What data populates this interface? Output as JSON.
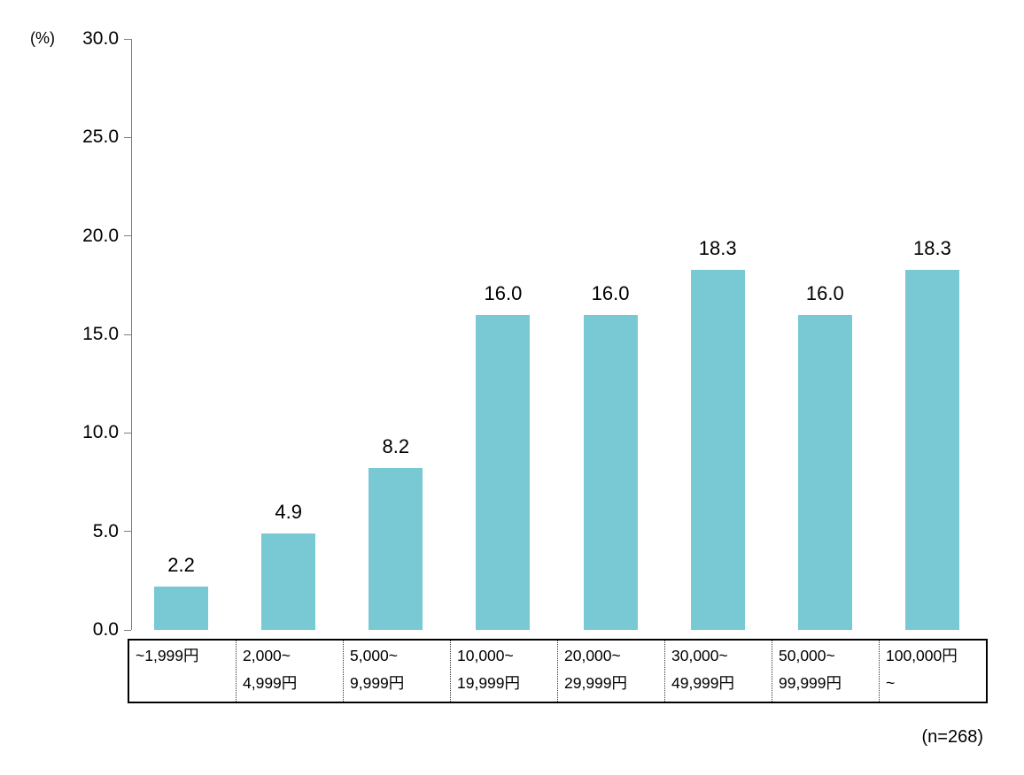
{
  "chart_data": {
    "type": "bar",
    "title": "",
    "y_unit_label": "(%)",
    "xlabel": "",
    "ylabel": "(%)",
    "ylim": [
      0,
      30
    ],
    "y_tick_step": 5,
    "y_ticks": [
      "30.0",
      "25.0",
      "20.0",
      "15.0",
      "10.0",
      "5.0",
      "0.0"
    ],
    "grid": false,
    "legend_position": "none",
    "bar_color": "#79c9d5",
    "categories": [
      "~1,999円",
      "2,000~\n4,999円",
      "5,000~\n9,999円",
      "10,000~\n19,999円",
      "20,000~\n29,999円",
      "30,000~\n49,999円",
      "50,000~\n99,999円",
      "100,000円\n~"
    ],
    "values": [
      2.2,
      4.9,
      8.2,
      16.0,
      16.0,
      18.3,
      16.0,
      18.3
    ],
    "value_labels": [
      "2.2",
      "4.9",
      "8.2",
      "16.0",
      "16.0",
      "18.3",
      "16.0",
      "18.3"
    ],
    "annotation": "(n=268)"
  }
}
